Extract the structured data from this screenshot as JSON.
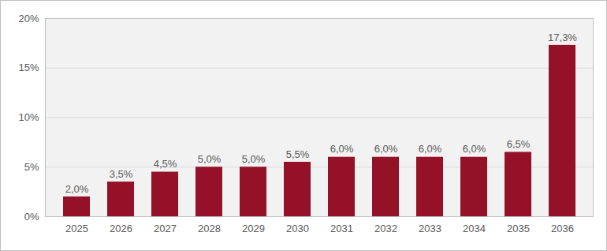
{
  "chart_data": {
    "type": "bar",
    "categories": [
      "2025",
      "2026",
      "2027",
      "2028",
      "2029",
      "2030",
      "2031",
      "2032",
      "2033",
      "2034",
      "2035",
      "2036"
    ],
    "values": [
      2.0,
      3.5,
      4.5,
      5.0,
      5.0,
      5.5,
      6.0,
      6.0,
      6.0,
      6.0,
      6.5,
      17.3
    ],
    "value_labels": [
      "2,0%",
      "3,5%",
      "4,5%",
      "5,0%",
      "5,0%",
      "5,5%",
      "6,0%",
      "6,0%",
      "6,0%",
      "6,0%",
      "6,5%",
      "17,3%"
    ],
    "color": "#941127",
    "ylim": [
      0,
      20
    ],
    "yticks": [
      {
        "value": 0,
        "label": "0%"
      },
      {
        "value": 5,
        "label": "5%"
      },
      {
        "value": 10,
        "label": "10%"
      },
      {
        "value": 15,
        "label": "15%"
      },
      {
        "value": 20,
        "label": "20%"
      }
    ],
    "grid": true,
    "data_labels": true
  }
}
